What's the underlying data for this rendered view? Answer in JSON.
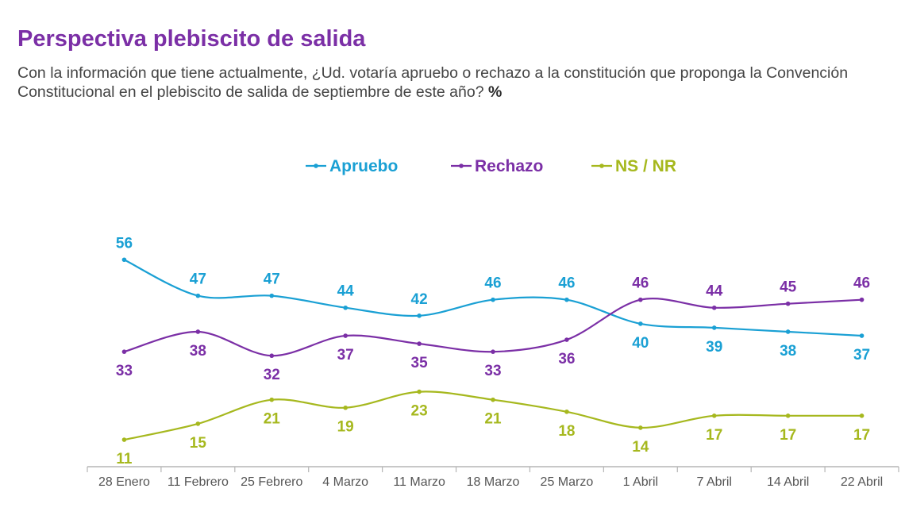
{
  "title": "Perspectiva plebiscito de salida",
  "subtitle_text": "Con la información que tiene actualmente, ¿Ud. votaría apruebo o rechazo a la constitución que proponga la Convención Constitucional en el plebiscito de salida de septiembre de este año?",
  "subtitle_unit": "%",
  "chart_data": {
    "type": "line",
    "title": "",
    "xlabel": "",
    "ylabel": "",
    "ylim": [
      0,
      60
    ],
    "grid": false,
    "legend_position": "top-center",
    "categories": [
      "28 Enero",
      "11 Febrero",
      "25 Febrero",
      "4 Marzo",
      "11 Marzo",
      "18 Marzo",
      "25 Marzo",
      "1 Abril",
      "7 Abril",
      "14 Abril",
      "22 Abril"
    ],
    "series": [
      {
        "name": "Apruebo",
        "color": "#1aa0d4",
        "values": [
          56,
          47,
          47,
          44,
          42,
          46,
          46,
          40,
          39,
          38,
          37
        ],
        "label_side": [
          "above",
          "above",
          "above",
          "above",
          "above",
          "above",
          "above",
          "below",
          "below",
          "below",
          "below"
        ]
      },
      {
        "name": "Rechazo",
        "color": "#7b2fa6",
        "values": [
          33,
          38,
          32,
          37,
          35,
          33,
          36,
          46,
          44,
          45,
          46
        ],
        "label_side": [
          "below",
          "below",
          "below",
          "below",
          "below",
          "below",
          "below",
          "above",
          "above",
          "above",
          "above"
        ]
      },
      {
        "name": "NS / NR",
        "color": "#a6b81e",
        "values": [
          11,
          15,
          21,
          19,
          23,
          21,
          18,
          14,
          17,
          17,
          17
        ],
        "label_side": [
          "below",
          "below",
          "below",
          "below",
          "below",
          "below",
          "below",
          "below",
          "below",
          "below",
          "below"
        ]
      }
    ]
  }
}
